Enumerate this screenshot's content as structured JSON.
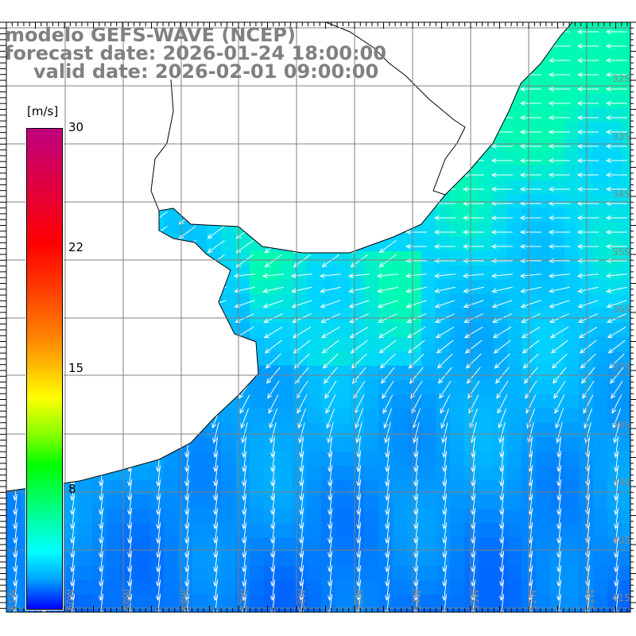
{
  "title": {
    "line1": "modelo GEFS-WAVE (NCEP)",
    "line2": "forecast date: 2026-01-24 18:00:00",
    "line3": "valid date: 2026-02-01 09:00:00"
  },
  "colorbar": {
    "unit": "[m/s]",
    "ticks": [
      "30",
      "22",
      "15",
      "8"
    ],
    "range": [
      0,
      30
    ]
  },
  "axes": {
    "lat_labels": [
      "32S",
      "33S",
      "34S",
      "35S",
      "36S",
      "37S",
      "38S",
      "39S",
      "40S",
      "41S"
    ],
    "lon_labels": [
      "61W",
      "60W",
      "59W",
      "58W",
      "57W",
      "56W",
      "55W",
      "54W",
      "53W",
      "52W",
      "51W"
    ]
  },
  "colors": {
    "grid": "#808080",
    "title": "#808080",
    "coast": "#000000",
    "land": "#ffffff"
  }
}
